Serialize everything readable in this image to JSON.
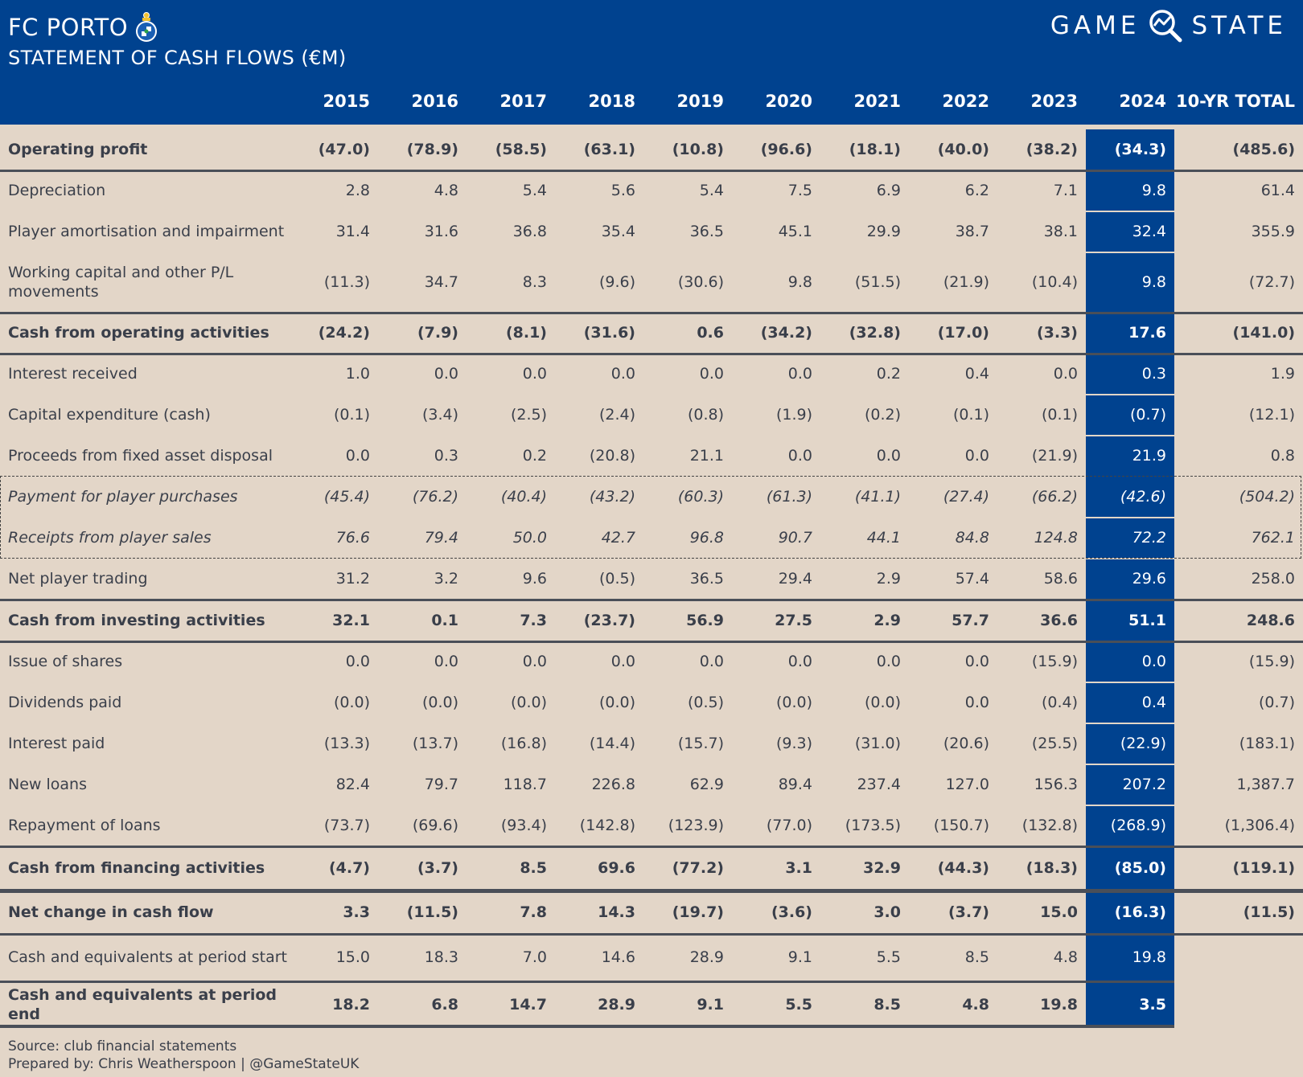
{
  "header": {
    "club": "FC PORTO",
    "subtitle": "STATEMENT OF CASH FLOWS (€M)",
    "brand_left": "GAME",
    "brand_right": "STATE",
    "brand_icon": "magnifier-chart-icon",
    "crest_icon": "club-crest-icon"
  },
  "columns": [
    "2015",
    "2016",
    "2017",
    "2018",
    "2019",
    "2020",
    "2021",
    "2022",
    "2023",
    "2024",
    "10-YR TOTAL"
  ],
  "highlight_column": "2024",
  "colors": {
    "navy": "#00428f",
    "background": "#e3d6c8",
    "text": "#3a3f4a"
  },
  "rows": [
    {
      "label": "Operating profit",
      "style": "bold",
      "values": [
        "(47.0)",
        "(78.9)",
        "(58.5)",
        "(63.1)",
        "(10.8)",
        "(96.6)",
        "(18.1)",
        "(40.0)",
        "(38.2)",
        "(34.3)",
        "(485.6)"
      ]
    },
    {
      "label": "Depreciation",
      "style": "normal",
      "values": [
        "2.8",
        "4.8",
        "5.4",
        "5.6",
        "5.4",
        "7.5",
        "6.9",
        "6.2",
        "7.1",
        "9.8",
        "61.4"
      ]
    },
    {
      "label": "Player amortisation and impairment",
      "style": "normal",
      "values": [
        "31.4",
        "31.6",
        "36.8",
        "35.4",
        "36.5",
        "45.1",
        "29.9",
        "38.7",
        "38.1",
        "32.4",
        "355.9"
      ]
    },
    {
      "label": "Working capital and other P/L movements",
      "style": "normal",
      "values": [
        "(11.3)",
        "34.7",
        "8.3",
        "(9.6)",
        "(30.6)",
        "9.8",
        "(51.5)",
        "(21.9)",
        "(10.4)",
        "9.8",
        "(72.7)"
      ]
    },
    {
      "label": "Cash from operating activities",
      "style": "bold",
      "values": [
        "(24.2)",
        "(7.9)",
        "(8.1)",
        "(31.6)",
        "0.6",
        "(34.2)",
        "(32.8)",
        "(17.0)",
        "(3.3)",
        "17.6",
        "(141.0)"
      ]
    },
    {
      "label": "Interest received",
      "style": "normal",
      "values": [
        "1.0",
        "0.0",
        "0.0",
        "0.0",
        "0.0",
        "0.0",
        "0.2",
        "0.4",
        "0.0",
        "0.3",
        "1.9"
      ]
    },
    {
      "label": "Capital expenditure (cash)",
      "style": "normal",
      "values": [
        "(0.1)",
        "(3.4)",
        "(2.5)",
        "(2.4)",
        "(0.8)",
        "(1.9)",
        "(0.2)",
        "(0.1)",
        "(0.1)",
        "(0.7)",
        "(12.1)"
      ]
    },
    {
      "label": "Proceeds from fixed asset disposal",
      "style": "normal",
      "values": [
        "0.0",
        "0.3",
        "0.2",
        "(20.8)",
        "21.1",
        "0.0",
        "0.0",
        "0.0",
        "(21.9)",
        "21.9",
        "0.8"
      ]
    },
    {
      "label": "Payment for player purchases",
      "style": "italic",
      "values": [
        "(45.4)",
        "(76.2)",
        "(40.4)",
        "(43.2)",
        "(60.3)",
        "(61.3)",
        "(41.1)",
        "(27.4)",
        "(66.2)",
        "(42.6)",
        "(504.2)"
      ]
    },
    {
      "label": "Receipts from player sales",
      "style": "italic",
      "values": [
        "76.6",
        "79.4",
        "50.0",
        "42.7",
        "96.8",
        "90.7",
        "44.1",
        "84.8",
        "124.8",
        "72.2",
        "762.1"
      ]
    },
    {
      "label": "Net player trading",
      "style": "normal",
      "values": [
        "31.2",
        "3.2",
        "9.6",
        "(0.5)",
        "36.5",
        "29.4",
        "2.9",
        "57.4",
        "58.6",
        "29.6",
        "258.0"
      ]
    },
    {
      "label": "Cash from investing activities",
      "style": "bold",
      "values": [
        "32.1",
        "0.1",
        "7.3",
        "(23.7)",
        "56.9",
        "27.5",
        "2.9",
        "57.7",
        "36.6",
        "51.1",
        "248.6"
      ]
    },
    {
      "label": "Issue of shares",
      "style": "normal",
      "values": [
        "0.0",
        "0.0",
        "0.0",
        "0.0",
        "0.0",
        "0.0",
        "0.0",
        "0.0",
        "(15.9)",
        "0.0",
        "(15.9)"
      ]
    },
    {
      "label": "Dividends paid",
      "style": "normal",
      "values": [
        "(0.0)",
        "(0.0)",
        "(0.0)",
        "(0.0)",
        "(0.5)",
        "(0.0)",
        "(0.0)",
        "0.0",
        "(0.4)",
        "0.4",
        "(0.7)"
      ]
    },
    {
      "label": "Interest paid",
      "style": "normal",
      "values": [
        "(13.3)",
        "(13.7)",
        "(16.8)",
        "(14.4)",
        "(15.7)",
        "(9.3)",
        "(31.0)",
        "(20.6)",
        "(25.5)",
        "(22.9)",
        "(183.1)"
      ]
    },
    {
      "label": "New loans",
      "style": "normal",
      "values": [
        "82.4",
        "79.7",
        "118.7",
        "226.8",
        "62.9",
        "89.4",
        "237.4",
        "127.0",
        "156.3",
        "207.2",
        "1,387.7"
      ]
    },
    {
      "label": "Repayment of loans",
      "style": "normal",
      "values": [
        "(73.7)",
        "(69.6)",
        "(93.4)",
        "(142.8)",
        "(123.9)",
        "(77.0)",
        "(173.5)",
        "(150.7)",
        "(132.8)",
        "(268.9)",
        "(1,306.4)"
      ]
    },
    {
      "label": "Cash from financing activities",
      "style": "bold",
      "values": [
        "(4.7)",
        "(3.7)",
        "8.5",
        "69.6",
        "(77.2)",
        "3.1",
        "32.9",
        "(44.3)",
        "(18.3)",
        "(85.0)",
        "(119.1)"
      ]
    },
    {
      "label": "Net change in cash flow",
      "style": "bold",
      "values": [
        "3.3",
        "(11.5)",
        "7.8",
        "14.3",
        "(19.7)",
        "(3.6)",
        "3.0",
        "(3.7)",
        "15.0",
        "(16.3)",
        "(11.5)"
      ]
    },
    {
      "label": "Cash and equivalents at period start",
      "style": "normal",
      "values": [
        "15.0",
        "18.3",
        "7.0",
        "14.6",
        "28.9",
        "9.1",
        "5.5",
        "8.5",
        "4.8",
        "19.8",
        ""
      ]
    },
    {
      "label": "Cash and equivalents at period end",
      "style": "bold",
      "values": [
        "18.2",
        "6.8",
        "14.7",
        "28.9",
        "9.1",
        "5.5",
        "8.5",
        "4.8",
        "19.8",
        "3.5",
        ""
      ]
    }
  ],
  "footer": {
    "source": "Source: club financial statements",
    "prepared": "Prepared by: Chris Weatherspoon | @GameStateUK"
  }
}
